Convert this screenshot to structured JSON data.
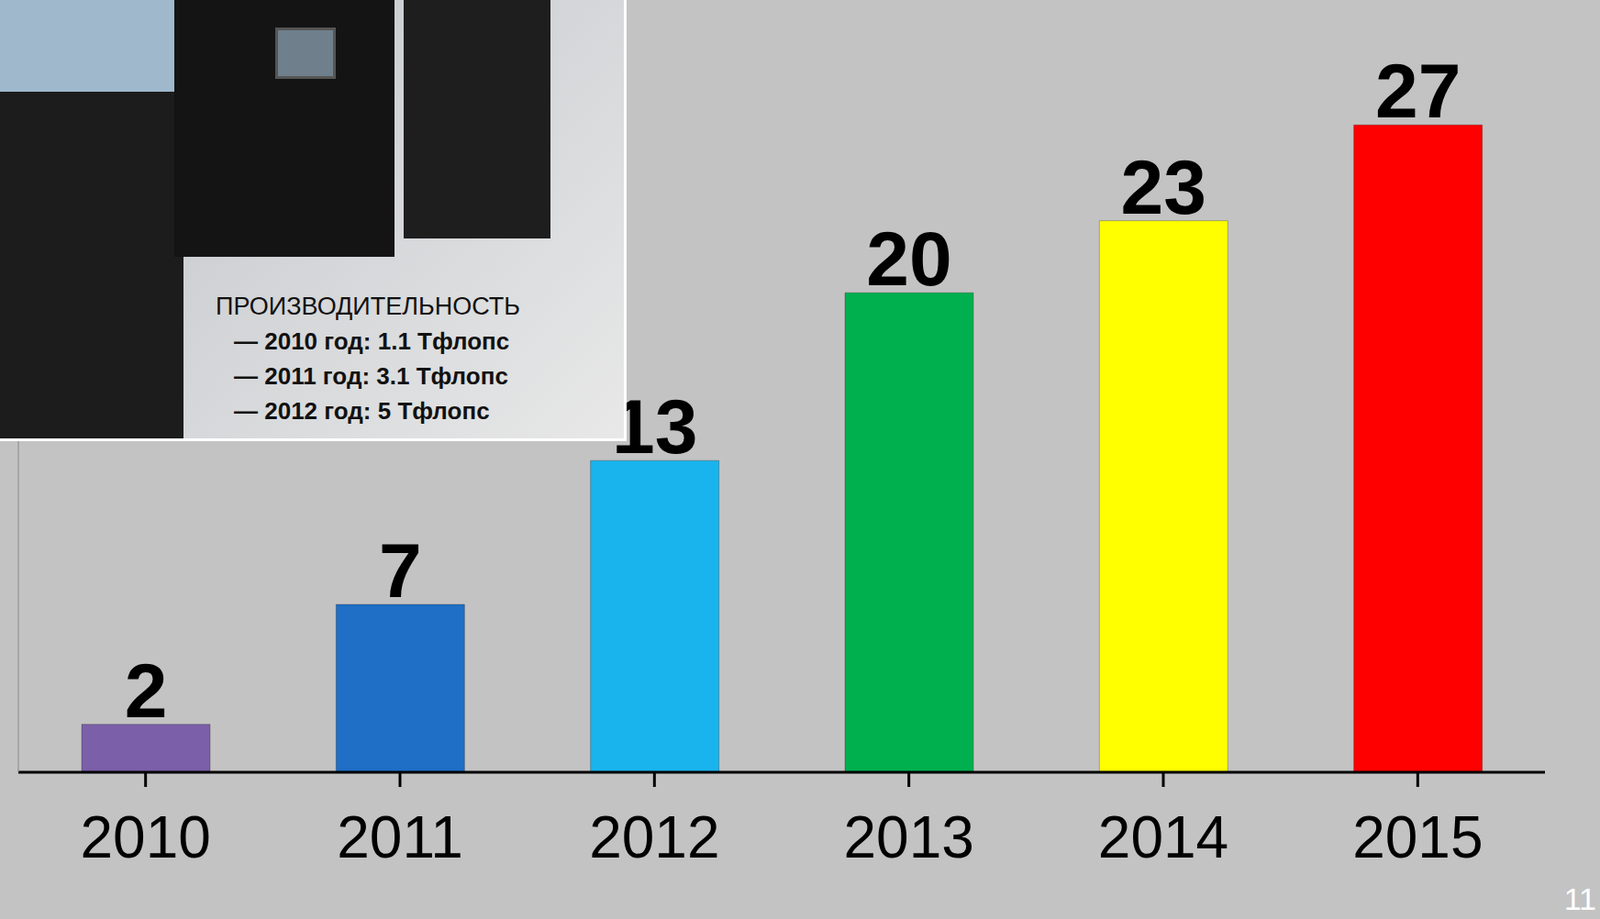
{
  "chart_data": {
    "type": "bar",
    "categories": [
      "2010",
      "2011",
      "2012",
      "2013",
      "2014",
      "2015"
    ],
    "values": [
      2,
      7,
      13,
      20,
      23,
      27
    ],
    "colors": [
      "#7b5fa8",
      "#1f6fc6",
      "#19b4ee",
      "#00b04f",
      "#ffff00",
      "#ff0000"
    ],
    "ylim": [
      0,
      28
    ],
    "data_labels": true,
    "tick_labels": "x",
    "grid": false,
    "annotations": [
      "ПРОИЗВОДИТЕЛЬНОСТЬ",
      "— 2010 год: 1.1 Тфлопс",
      "— 2011 год: 3.1 Тфлопс",
      "— 2012 год: 5 Тфлопс",
      "11"
    ]
  }
}
